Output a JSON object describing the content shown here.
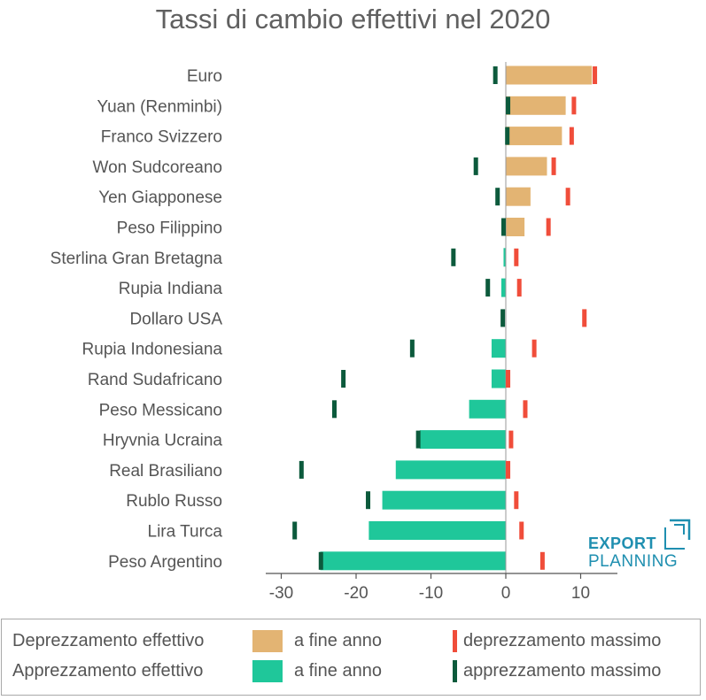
{
  "chart_data": {
    "type": "bar",
    "orientation": "horizontal",
    "title": "Tassi di cambio effettivi nel 2020",
    "xlim": [
      -30,
      15
    ],
    "xticks": [
      -30,
      -20,
      -10,
      0,
      10
    ],
    "xtick_labels": [
      "-30",
      "-20",
      "-10",
      "0",
      "10"
    ],
    "categories": [
      "Euro",
      "Yuan (Renminbi)",
      "Franco Svizzero",
      "Won Sudcoreano",
      "Yen Giapponese",
      "Peso Filippino",
      "Sterlina Gran Bretagna",
      "Rupia Indiana",
      "Dollaro USA",
      "Rupia Indonesiana",
      "Rand Sudafricano",
      "Peso Messicano",
      "Hryvnia Ucraina",
      "Real Brasiliano",
      "Rublo Russo",
      "Lira Turca",
      "Peso Argentino"
    ],
    "series": [
      {
        "name": "a fine anno",
        "values": [
          11.5,
          8.0,
          7.5,
          5.5,
          3.3,
          2.5,
          -0.3,
          -0.6,
          0.0,
          -1.9,
          -1.9,
          -4.9,
          -11.5,
          -14.7,
          -16.5,
          -18.3,
          -24.8
        ]
      },
      {
        "name": "deprezzamento massimo",
        "values": [
          11.9,
          9.1,
          8.8,
          6.4,
          8.3,
          5.7,
          1.4,
          1.8,
          10.5,
          3.8,
          0.3,
          2.6,
          0.7,
          0.3,
          1.4,
          2.1,
          4.9
        ]
      },
      {
        "name": "apprezzamento massimo",
        "values": [
          -1.4,
          0.3,
          0.2,
          -4.0,
          -1.1,
          -0.3,
          -7.0,
          -2.4,
          -0.4,
          -12.5,
          -21.7,
          -22.9,
          -11.7,
          -27.3,
          -18.4,
          -28.2,
          -24.7
        ]
      }
    ],
    "colors": {
      "deprezzamento": "#e3b473",
      "apprezzamento": "#1fc79a",
      "dep_max": "#f04d3a",
      "app_max": "#0c5a3c",
      "axis": "#555555",
      "zero_line": "#999999"
    }
  },
  "legend": {
    "row1_label": "Deprezzamento effettivo",
    "row1_swatch_label": "a fine anno",
    "row1_mark_label": "deprezzamento massimo",
    "row2_label": "Apprezzamento effettivo",
    "row2_swatch_label": "a fine anno",
    "row2_mark_label": "apprezzamento massimo"
  },
  "logo": {
    "line1": "EXPORT",
    "line2": "PLANNING",
    "color": "#1f8fb0"
  }
}
